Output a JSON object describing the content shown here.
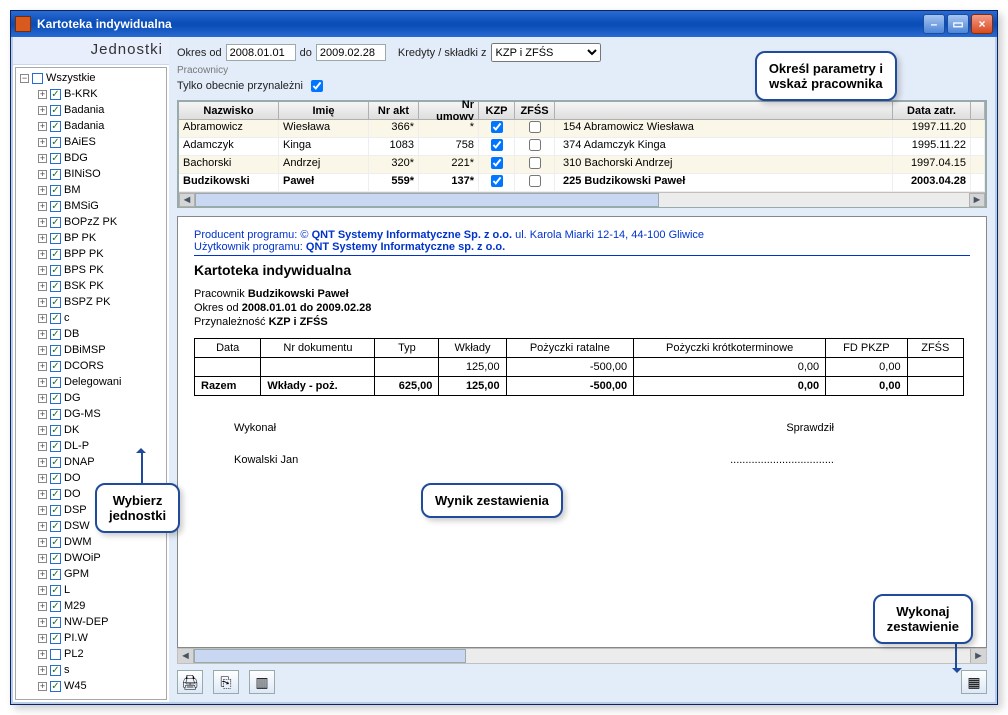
{
  "window_title": "Kartoteka indywidualna",
  "left": {
    "heading": "Jednostki",
    "root": {
      "label": "Wszystkie",
      "checked": false,
      "expanded": true
    },
    "nodes": [
      {
        "label": "B-KRK",
        "checked": true
      },
      {
        "label": "Badania",
        "checked": true
      },
      {
        "label": "Badania",
        "checked": true
      },
      {
        "label": "BAiES",
        "checked": true
      },
      {
        "label": "BDG",
        "checked": true
      },
      {
        "label": "BINiSO",
        "checked": true
      },
      {
        "label": "BM",
        "checked": true
      },
      {
        "label": "BMSiG",
        "checked": true
      },
      {
        "label": "BOPzZ PK",
        "checked": true
      },
      {
        "label": "BP PK",
        "checked": true
      },
      {
        "label": "BPP PK",
        "checked": true
      },
      {
        "label": "BPS PK",
        "checked": true
      },
      {
        "label": "BSK PK",
        "checked": true
      },
      {
        "label": "BSPZ PK",
        "checked": true
      },
      {
        "label": "c",
        "checked": true
      },
      {
        "label": "DB",
        "checked": true
      },
      {
        "label": "DBiMSP",
        "checked": true
      },
      {
        "label": "DCORS",
        "checked": true
      },
      {
        "label": "Delegowani",
        "checked": true
      },
      {
        "label": "DG",
        "checked": true
      },
      {
        "label": "DG-MS",
        "checked": true
      },
      {
        "label": "DK",
        "checked": true
      },
      {
        "label": "DL-P",
        "checked": true
      },
      {
        "label": "DNAP",
        "checked": true
      },
      {
        "label": "DO",
        "checked": true
      },
      {
        "label": "DO",
        "checked": true
      },
      {
        "label": "DSP",
        "checked": true
      },
      {
        "label": "DSW",
        "checked": true
      },
      {
        "label": "DWM",
        "checked": true
      },
      {
        "label": "DWOiP",
        "checked": true
      },
      {
        "label": "GPM",
        "checked": true
      },
      {
        "label": "L",
        "checked": true
      },
      {
        "label": "M29",
        "checked": true
      },
      {
        "label": "NW-DEP",
        "checked": true
      },
      {
        "label": "PI.W",
        "checked": true
      },
      {
        "label": "PL2",
        "checked": false
      },
      {
        "label": "s",
        "checked": true
      },
      {
        "label": "W45",
        "checked": true
      }
    ]
  },
  "filters": {
    "okres_od_label": "Okres od",
    "okres_od": "2008.01.01",
    "do_label": "do",
    "okres_do": "2009.02.28",
    "kredyty_label": "Kredyty / składki z",
    "kredyty_value": "KZP i ZFŚS",
    "group_label": "Pracownicy",
    "tylko_label": "Tylko obecnie przynależni",
    "tylko_checked": true
  },
  "emp_headers": {
    "nazwisko": "Nazwisko",
    "imie": "Imię",
    "nrakt": "Nr akt",
    "nrum": "Nr umowy",
    "kzp": "KZP",
    "zfss": "ZFŚS",
    "data": "Data zatr."
  },
  "emp_rows": [
    {
      "nazwisko": "Abramowicz",
      "imie": "Wiesława",
      "nrakt": "366*",
      "nrum": "*",
      "kzp": true,
      "zfss": false,
      "full": "154 Abramowicz Wiesława",
      "data": "1997.11.20",
      "sel": false,
      "alt": true
    },
    {
      "nazwisko": "Adamczyk",
      "imie": "Kinga",
      "nrakt": "1083",
      "nrum": "758",
      "kzp": true,
      "zfss": false,
      "full": "374 Adamczyk Kinga",
      "data": "1995.11.22",
      "sel": false,
      "alt": false
    },
    {
      "nazwisko": "Bachorski",
      "imie": "Andrzej",
      "nrakt": "320*",
      "nrum": "221*",
      "kzp": true,
      "zfss": false,
      "full": "310 Bachorski Andrzej",
      "data": "1997.04.15",
      "sel": false,
      "alt": true
    },
    {
      "nazwisko": "Budzikowski",
      "imie": "Paweł",
      "nrakt": "559*",
      "nrum": "137*",
      "kzp": true,
      "zfss": false,
      "full": "225 Budzikowski Paweł",
      "data": "2003.04.28",
      "sel": true,
      "alt": false
    }
  ],
  "preview": {
    "producer_label": "Producent programu: ©",
    "producer": "QNT Systemy Informatyczne Sp. z o.o.",
    "producer_addr": "ul. Karola Miarki 12-14, 44-100 Gliwice",
    "user_label": "Użytkownik programu:",
    "user": "QNT Systemy Informatyczne sp. z o.o.",
    "title": "Kartoteka indywidualna",
    "pracownik_label": "Pracownik",
    "pracownik": "Budzikowski Paweł",
    "okres_label": "Okres od",
    "okres": "2008.01.01 do 2009.02.28",
    "przyn_label": "Przynależność",
    "przyn": "KZP i ZFŚS",
    "columns": [
      "Data",
      "Nr dokumentu",
      "Typ",
      "Wkłady",
      "Pożyczki ratalne",
      "Pożyczki krótkoterminowe",
      "FD PKZP",
      "ZFŚS"
    ],
    "row1": [
      "",
      "",
      "",
      "125,00",
      "-500,00",
      "0,00",
      "0,00",
      ""
    ],
    "sum_label": "Razem",
    "sum_desc": "Wkłady - poż.",
    "sum_total": "625,00",
    "sum": [
      "125,00",
      "-500,00",
      "0,00",
      "0,00",
      ""
    ],
    "wykonal": "Wykonał",
    "sprawdzil": "Sprawdził",
    "kowalski": "Kowalski Jan"
  },
  "callouts": {
    "c1": "Określ parametry i\nwskaż pracownika",
    "c2": "Wybierz\njednostki",
    "c3": "Wynik zestawienia",
    "c4": "Wykonaj\nzestawienie"
  }
}
